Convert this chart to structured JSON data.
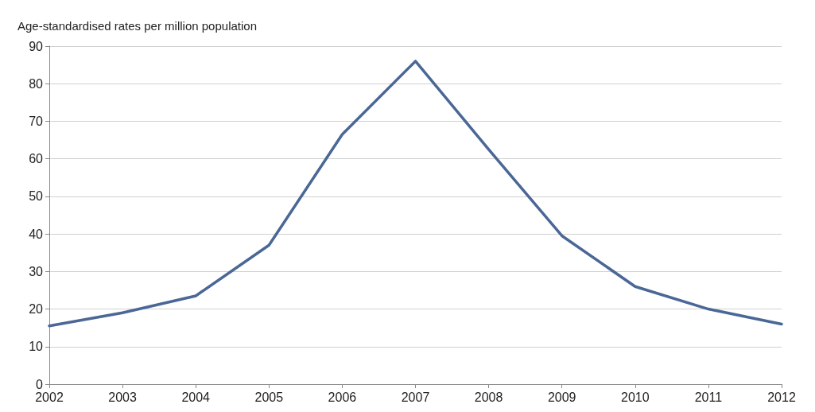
{
  "chart_data": {
    "type": "line",
    "ylabel": "Age-standardised rates per million population",
    "categories": [
      "2002",
      "2003",
      "2004",
      "2005",
      "2006",
      "2007",
      "2008",
      "2009",
      "2010",
      "2011",
      "2012"
    ],
    "series": [
      {
        "color": "#4a6796",
        "values": [
          15.5,
          19,
          23.5,
          37,
          66.5,
          86,
          62.5,
          39.5,
          26,
          20,
          16
        ]
      }
    ],
    "ylim": [
      0,
      90
    ],
    "yticks": [
      0,
      10,
      20,
      30,
      40,
      50,
      60,
      70,
      80,
      90
    ],
    "grid": "y",
    "marker": "none",
    "line_style": "solid"
  }
}
